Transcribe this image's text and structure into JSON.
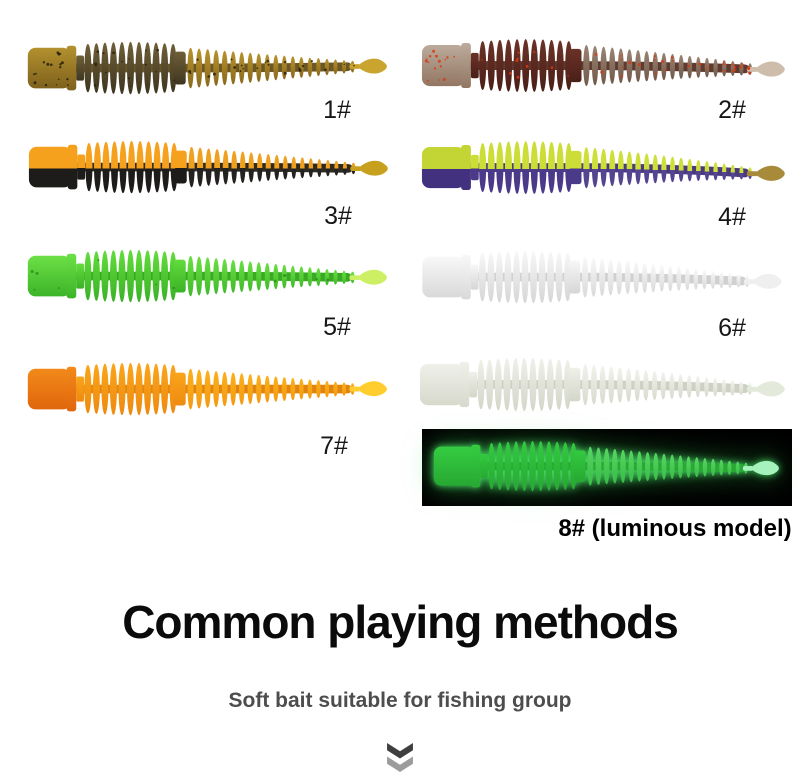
{
  "canvas": {
    "background": "#ffffff"
  },
  "lures": [
    {
      "label": "1#",
      "droop": -2,
      "colors": {
        "head": [
          "#b3912f",
          "#7e611c"
        ],
        "front": [
          "#6f5f38",
          "#3f3620"
        ],
        "rear": [
          "#b8922d",
          "#8a6a1c"
        ],
        "tail": "#c9a42f",
        "spine": "#6b5626",
        "split": false
      },
      "speckle": {
        "color": "#26200c",
        "count": 55
      }
    },
    {
      "label": "2#",
      "droop": 5,
      "colors": {
        "head": [
          "#bcab9b",
          "#927663"
        ],
        "front": [
          "#6b3227",
          "#4a1f18"
        ],
        "rear": [
          "#9a8372",
          "#715a4a"
        ],
        "tail": "#cfbdab",
        "spine": "#5e3b2e",
        "split": false
      },
      "speckle": {
        "color": "#d8390f",
        "count": 60
      }
    },
    {
      "label": "3#",
      "droop": 2,
      "colors": {
        "head": [
          "#f5a11e",
          "#1d1c1a"
        ],
        "front": [
          "#f5a11e",
          "#1d1c1a"
        ],
        "rear": [
          "#f0a01f",
          "#242220"
        ],
        "tail": "#c7a01d",
        "spine": "#2e2a20",
        "split": true
      },
      "speckle": null
    },
    {
      "label": "4#",
      "droop": 8,
      "colors": {
        "head": [
          "#c3d534",
          "#42317e"
        ],
        "front": [
          "#ccdd37",
          "#4b3a8a"
        ],
        "rear": [
          "#cfdf3a",
          "#55448f"
        ],
        "tail": "#a78a3a",
        "spine": "#4a3a80",
        "split": true
      },
      "speckle": null
    },
    {
      "label": "5#",
      "droop": 2,
      "colors": {
        "head": [
          "#6ce046",
          "#3cb428"
        ],
        "front": [
          "#62dc3c",
          "#3bb227"
        ],
        "rear": [
          "#68df41",
          "#41bb2b"
        ],
        "tail": "#cdef63",
        "spine": "#3aa824",
        "split": false
      },
      "speckle": {
        "color": "#2e8f1d",
        "count": 12
      }
    },
    {
      "label": "6#",
      "droop": 6,
      "colors": {
        "head": [
          "#f8f8f8",
          "#d9d9d9"
        ],
        "front": [
          "#f7f7f7",
          "#d6d6d6"
        ],
        "rear": [
          "#f8f8f8",
          "#dadada"
        ],
        "tail": "#efefef",
        "spine": "#d0d0d0",
        "split": false
      },
      "speckle": null
    },
    {
      "label": "7#",
      "droop": 0,
      "colors": {
        "head": [
          "#f28a1a",
          "#e0660c"
        ],
        "front": [
          "#faa51a",
          "#ee8a10"
        ],
        "rear": [
          "#fbb01a",
          "#f49a12"
        ],
        "tail": "#ffce2e",
        "spine": "#e08410",
        "split": false
      },
      "speckle": null
    },
    {
      "label": "",
      "droop": 6,
      "colors": {
        "head": [
          "#f0f0ea",
          "#d6d9cc"
        ],
        "front": [
          "#eff0e9",
          "#d3d6c9"
        ],
        "rear": [
          "#f1f2ec",
          "#d8dbce"
        ],
        "tail": "#e4eadb",
        "spine": "#cdd0c3",
        "split": false
      },
      "speckle": null
    }
  ],
  "luminous_panel": {
    "label": "8# (luminous model)",
    "background": "#000000",
    "glow_color": "#37d347",
    "worm": {
      "droop": 3,
      "colors": {
        "head": [
          "#35cc41",
          "#27a832"
        ],
        "front": [
          "#33ca3f",
          "#27a832"
        ],
        "rear": [
          "#55d661",
          "#39bd47"
        ],
        "tail": "#a5f2bd",
        "spine": "#2aa835",
        "split": false
      },
      "speckle": null
    }
  },
  "section": {
    "title": "Common playing methods",
    "subtitle": "Soft bait suitable for fishing group"
  },
  "icons": {
    "scroll_more": "double-chevron-down",
    "chevron_top_color": "#3f3f3f",
    "chevron_bottom_color": "#9c9c9c"
  }
}
